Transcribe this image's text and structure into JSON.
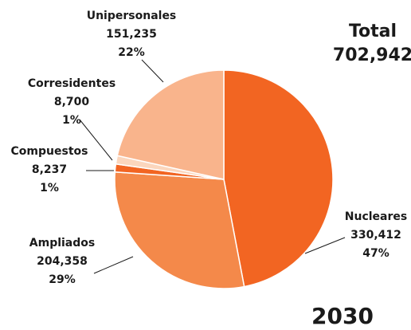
{
  "chart_data": {
    "type": "pie",
    "categories": [
      "Nucleares",
      "Ampliados",
      "Compuestos",
      "Corresidentes",
      "Unipersonales"
    ],
    "values": [
      330412,
      204358,
      8237,
      8700,
      151235
    ],
    "value_labels": [
      "330,412",
      "204,358",
      "8,237",
      "8,700",
      "151,235"
    ],
    "percent_labels": [
      "47%",
      "29%",
      "1%",
      "1%",
      "22%"
    ],
    "colors": [
      "#f26522",
      "#f4894a",
      "#f26522",
      "#fbd6bd",
      "#f9b48c"
    ],
    "total_title": "Total",
    "total": "702,942",
    "year": "2030"
  }
}
